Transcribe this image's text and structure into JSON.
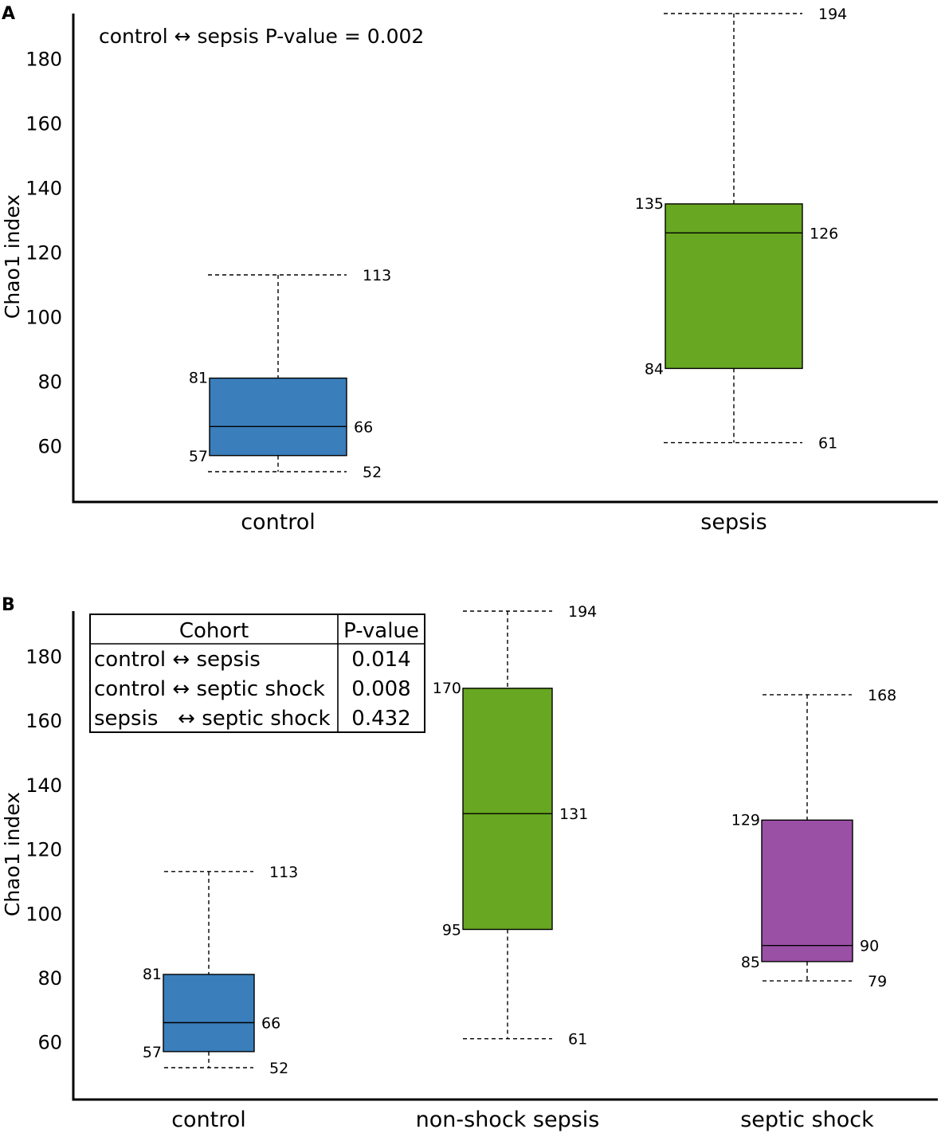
{
  "chart_data": [
    {
      "type": "box",
      "panel_label": "A",
      "ylabel": "Chao1 index",
      "xlabel": "",
      "ylim": [
        45,
        194
      ],
      "yticks": [
        60,
        80,
        100,
        120,
        140,
        160,
        180
      ],
      "subtitle": "control ↔ sepsis P-value = 0.002",
      "categories": [
        "control",
        "sepsis"
      ],
      "boxes": [
        {
          "name": "control",
          "min": 52,
          "q1": 57,
          "median": 66,
          "q3": 81,
          "max": 113,
          "color": "#3a7ebb"
        },
        {
          "name": "sepsis",
          "min": 61,
          "q1": 84,
          "median": 126,
          "q3": 135,
          "max": 194,
          "color": "#67a722"
        }
      ],
      "annotation_labels": {
        "control": {
          "min": "52",
          "q1": "57",
          "median": "66",
          "q3": "81",
          "max": "113"
        },
        "sepsis": {
          "min": "61",
          "q1": "84",
          "median": "126",
          "q3": "135",
          "max": "194"
        }
      }
    },
    {
      "type": "box",
      "panel_label": "B",
      "ylabel": "Chao1 index",
      "xlabel": "",
      "ylim": [
        45,
        194
      ],
      "yticks": [
        60,
        80,
        100,
        120,
        140,
        160,
        180
      ],
      "categories": [
        "control",
        "non-shock sepsis",
        "septic shock"
      ],
      "boxes": [
        {
          "name": "control",
          "min": 52,
          "q1": 57,
          "median": 66,
          "q3": 81,
          "max": 113,
          "color": "#3a7ebb"
        },
        {
          "name": "non-shock sepsis",
          "min": 61,
          "q1": 95,
          "median": 131,
          "q3": 170,
          "max": 194,
          "color": "#67a722"
        },
        {
          "name": "septic shock",
          "min": 79,
          "q1": 85,
          "median": 90,
          "q3": 129,
          "max": 168,
          "color": "#9a50a5"
        }
      ],
      "annotation_labels": {
        "control": {
          "min": "52",
          "q1": "57",
          "median": "66",
          "q3": "81",
          "max": "113"
        },
        "non-shock sepsis": {
          "min": "61",
          "q1": "95",
          "median": "131",
          "q3": "170",
          "max": "194"
        },
        "septic shock": {
          "min": "79",
          "q1": "85",
          "median": "90",
          "q3": "129",
          "max": "168"
        }
      },
      "table": {
        "headers": [
          "Cohort",
          "P-value"
        ],
        "rows": [
          [
            "control ↔ sepsis",
            "0.014"
          ],
          [
            "control ↔ septic shock",
            "0.008"
          ],
          [
            "sepsis   ↔ septic shock",
            "0.432"
          ]
        ]
      }
    }
  ]
}
